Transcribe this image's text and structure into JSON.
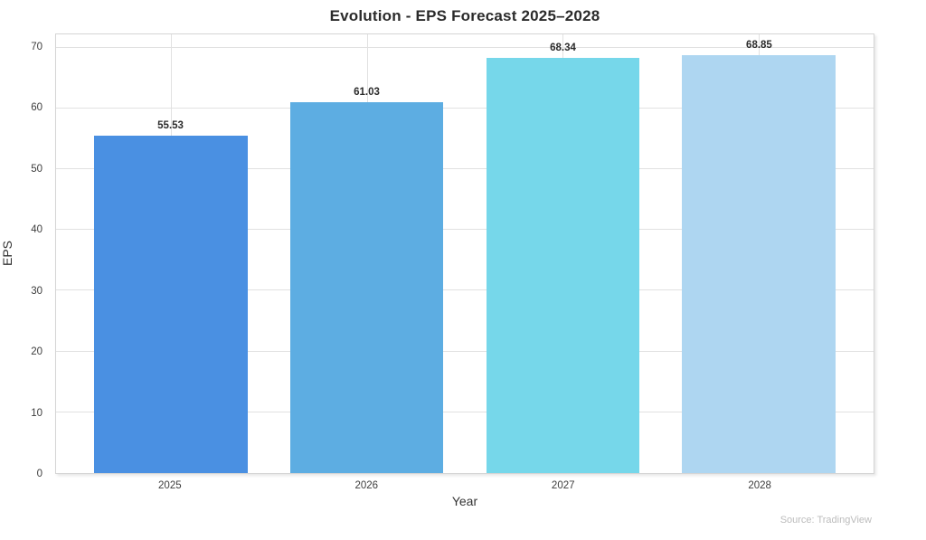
{
  "chart_data": {
    "type": "bar",
    "title": "Evolution - EPS Forecast 2025–2028",
    "categories": [
      "2025",
      "2026",
      "2027",
      "2028"
    ],
    "values": [
      55.53,
      61.03,
      68.34,
      68.85
    ],
    "value_labels": [
      "55.53",
      "61.03",
      "68.34",
      "68.85"
    ],
    "xlabel": "Year",
    "ylabel": "EPS",
    "yticks": [
      0,
      10,
      20,
      30,
      40,
      50,
      60,
      70
    ],
    "ylim": [
      0,
      72.2
    ],
    "grid": true,
    "legend": "none",
    "bar_colors": [
      "#4A90E2",
      "#5DADE2",
      "#76D7EA",
      "#AED6F1"
    ],
    "source_note": "Source: TradingView"
  },
  "colors": {
    "title_text": "#2b2b2b",
    "tick_text": "#3d3d3d",
    "gridline": "#e1e1e1",
    "plot_border": "#d5d5d5",
    "value_label_text": "#2b2b2b",
    "source_text": "#bcbcbc",
    "background": "#ffffff"
  }
}
